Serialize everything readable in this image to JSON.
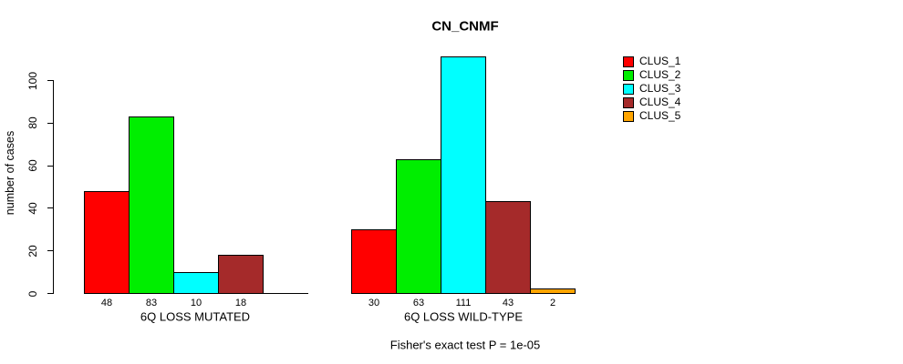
{
  "chart_data": {
    "type": "bar",
    "title": "CN_CNMF",
    "ylabel": "number of cases",
    "xlabel": "",
    "yticks": [
      0,
      20,
      40,
      60,
      80,
      100
    ],
    "ylim": [
      0,
      117
    ],
    "grid": false,
    "legend_position": "right",
    "categories": [
      "6Q LOSS MUTATED",
      "6Q LOSS WILD-TYPE"
    ],
    "series": [
      {
        "name": "CLUS_1",
        "color": "#ff0000",
        "values": [
          48,
          30
        ]
      },
      {
        "name": "CLUS_2",
        "color": "#00ee00",
        "values": [
          83,
          63
        ]
      },
      {
        "name": "CLUS_3",
        "color": "#00ffff",
        "values": [
          10,
          111
        ]
      },
      {
        "name": "CLUS_4",
        "color": "#a52a2a",
        "values": [
          18,
          43
        ]
      },
      {
        "name": "CLUS_5",
        "color": "#ffa500",
        "values": [
          0,
          2
        ]
      }
    ],
    "bar_value_labels": [
      [
        "48",
        "83",
        "10",
        "18",
        ""
      ],
      [
        "30",
        "63",
        "111",
        "43",
        "2"
      ]
    ],
    "subtitle": "Fisher's exact test P = 1e-05"
  }
}
